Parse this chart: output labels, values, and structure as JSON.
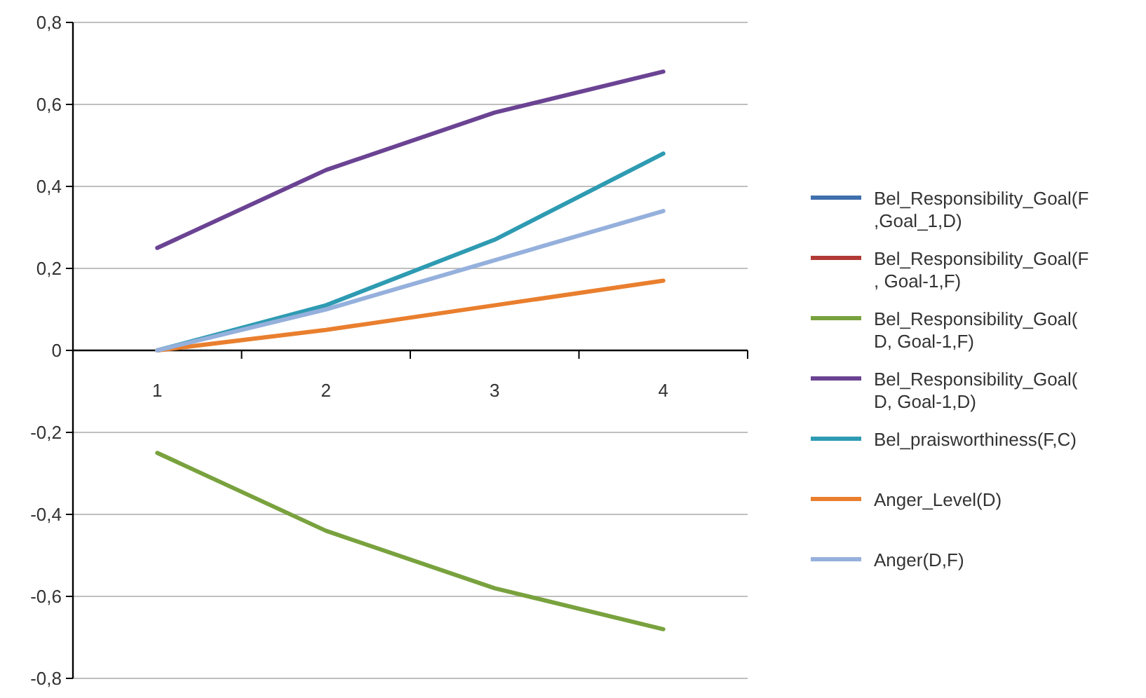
{
  "chart_data": {
    "type": "line",
    "categories": [
      "1",
      "2",
      "3",
      "4"
    ],
    "series": [
      {
        "name": "Bel_Responsibility_Goal(F\n,Goal_1,D)",
        "color": "#3f6fad",
        "values": [
          null,
          null,
          null,
          null
        ]
      },
      {
        "name": "Bel_Responsibility_Goal(F\n, Goal-1,F)",
        "color": "#b23a36",
        "values": [
          null,
          null,
          null,
          null
        ]
      },
      {
        "name": "Bel_Responsibility_Goal(\nD, Goal-1,F)",
        "color": "#79a23e",
        "values": [
          -0.25,
          -0.44,
          -0.58,
          -0.68
        ]
      },
      {
        "name": "Bel_Responsibility_Goal(\nD, Goal-1,D)",
        "color": "#6b4393",
        "values": [
          0.25,
          0.44,
          0.58,
          0.68
        ]
      },
      {
        "name": "Bel_praisworthiness(F,C)",
        "color": "#2e9bb2",
        "values": [
          0,
          0.11,
          0.27,
          0.48
        ]
      },
      {
        "name": "Anger_Level(D)",
        "color": "#e97f2e",
        "values": [
          0,
          0.05,
          0.11,
          0.17
        ]
      },
      {
        "name": "Anger(D,F)",
        "color": "#95b0dc",
        "values": [
          0,
          0.1,
          0.22,
          0.34
        ]
      }
    ],
    "ylim": [
      -0.8,
      0.8
    ],
    "yticks": [
      {
        "value": -0.8,
        "label": "-0,8"
      },
      {
        "value": -0.6,
        "label": "-0,6"
      },
      {
        "value": -0.4,
        "label": "-0,4"
      },
      {
        "value": -0.2,
        "label": "-0,2"
      },
      0,
      {
        "value": 0.2,
        "label": "0,2"
      },
      {
        "value": 0.4,
        "label": "0,4"
      },
      {
        "value": 0.6,
        "label": "0,6"
      },
      {
        "value": 0.8,
        "label": "0,8"
      }
    ],
    "grid": "y",
    "legend": "right",
    "marker": "none",
    "line_style": "solid"
  }
}
